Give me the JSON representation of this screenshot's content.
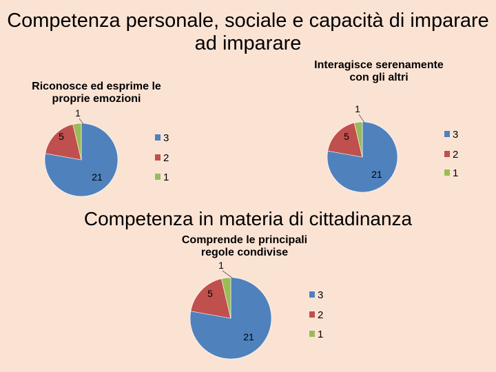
{
  "main_title": "Competenza personale, sociale e capacità di imparare ad imparare",
  "section_title": "Competenza in materia di cittadinanza",
  "colors": {
    "3": "#4f81bd",
    "2": "#c0504d",
    "1": "#9bbb59"
  },
  "chart_data": [
    {
      "type": "pie",
      "title": "Riconosce ed esprime le proprie emozioni",
      "categories": [
        "3",
        "2",
        "1"
      ],
      "values": [
        21,
        5,
        1
      ],
      "data_labels": [
        "21",
        "5",
        "1"
      ],
      "legend": [
        "3",
        "2",
        "1"
      ],
      "legend_position": "right"
    },
    {
      "type": "pie",
      "title": "Interagisce serenamente con gli altri",
      "categories": [
        "3",
        "2",
        "1"
      ],
      "values": [
        21,
        5,
        1
      ],
      "data_labels": [
        "21",
        "5",
        "1"
      ],
      "legend": [
        "3",
        "2",
        "1"
      ],
      "legend_position": "right"
    },
    {
      "type": "pie",
      "title": "Comprende le principali regole condivise",
      "categories": [
        "3",
        "2",
        "1"
      ],
      "values": [
        21,
        5,
        1
      ],
      "data_labels": [
        "21",
        "5",
        "1"
      ],
      "legend": [
        "3",
        "2",
        "1"
      ],
      "legend_position": "right"
    }
  ]
}
